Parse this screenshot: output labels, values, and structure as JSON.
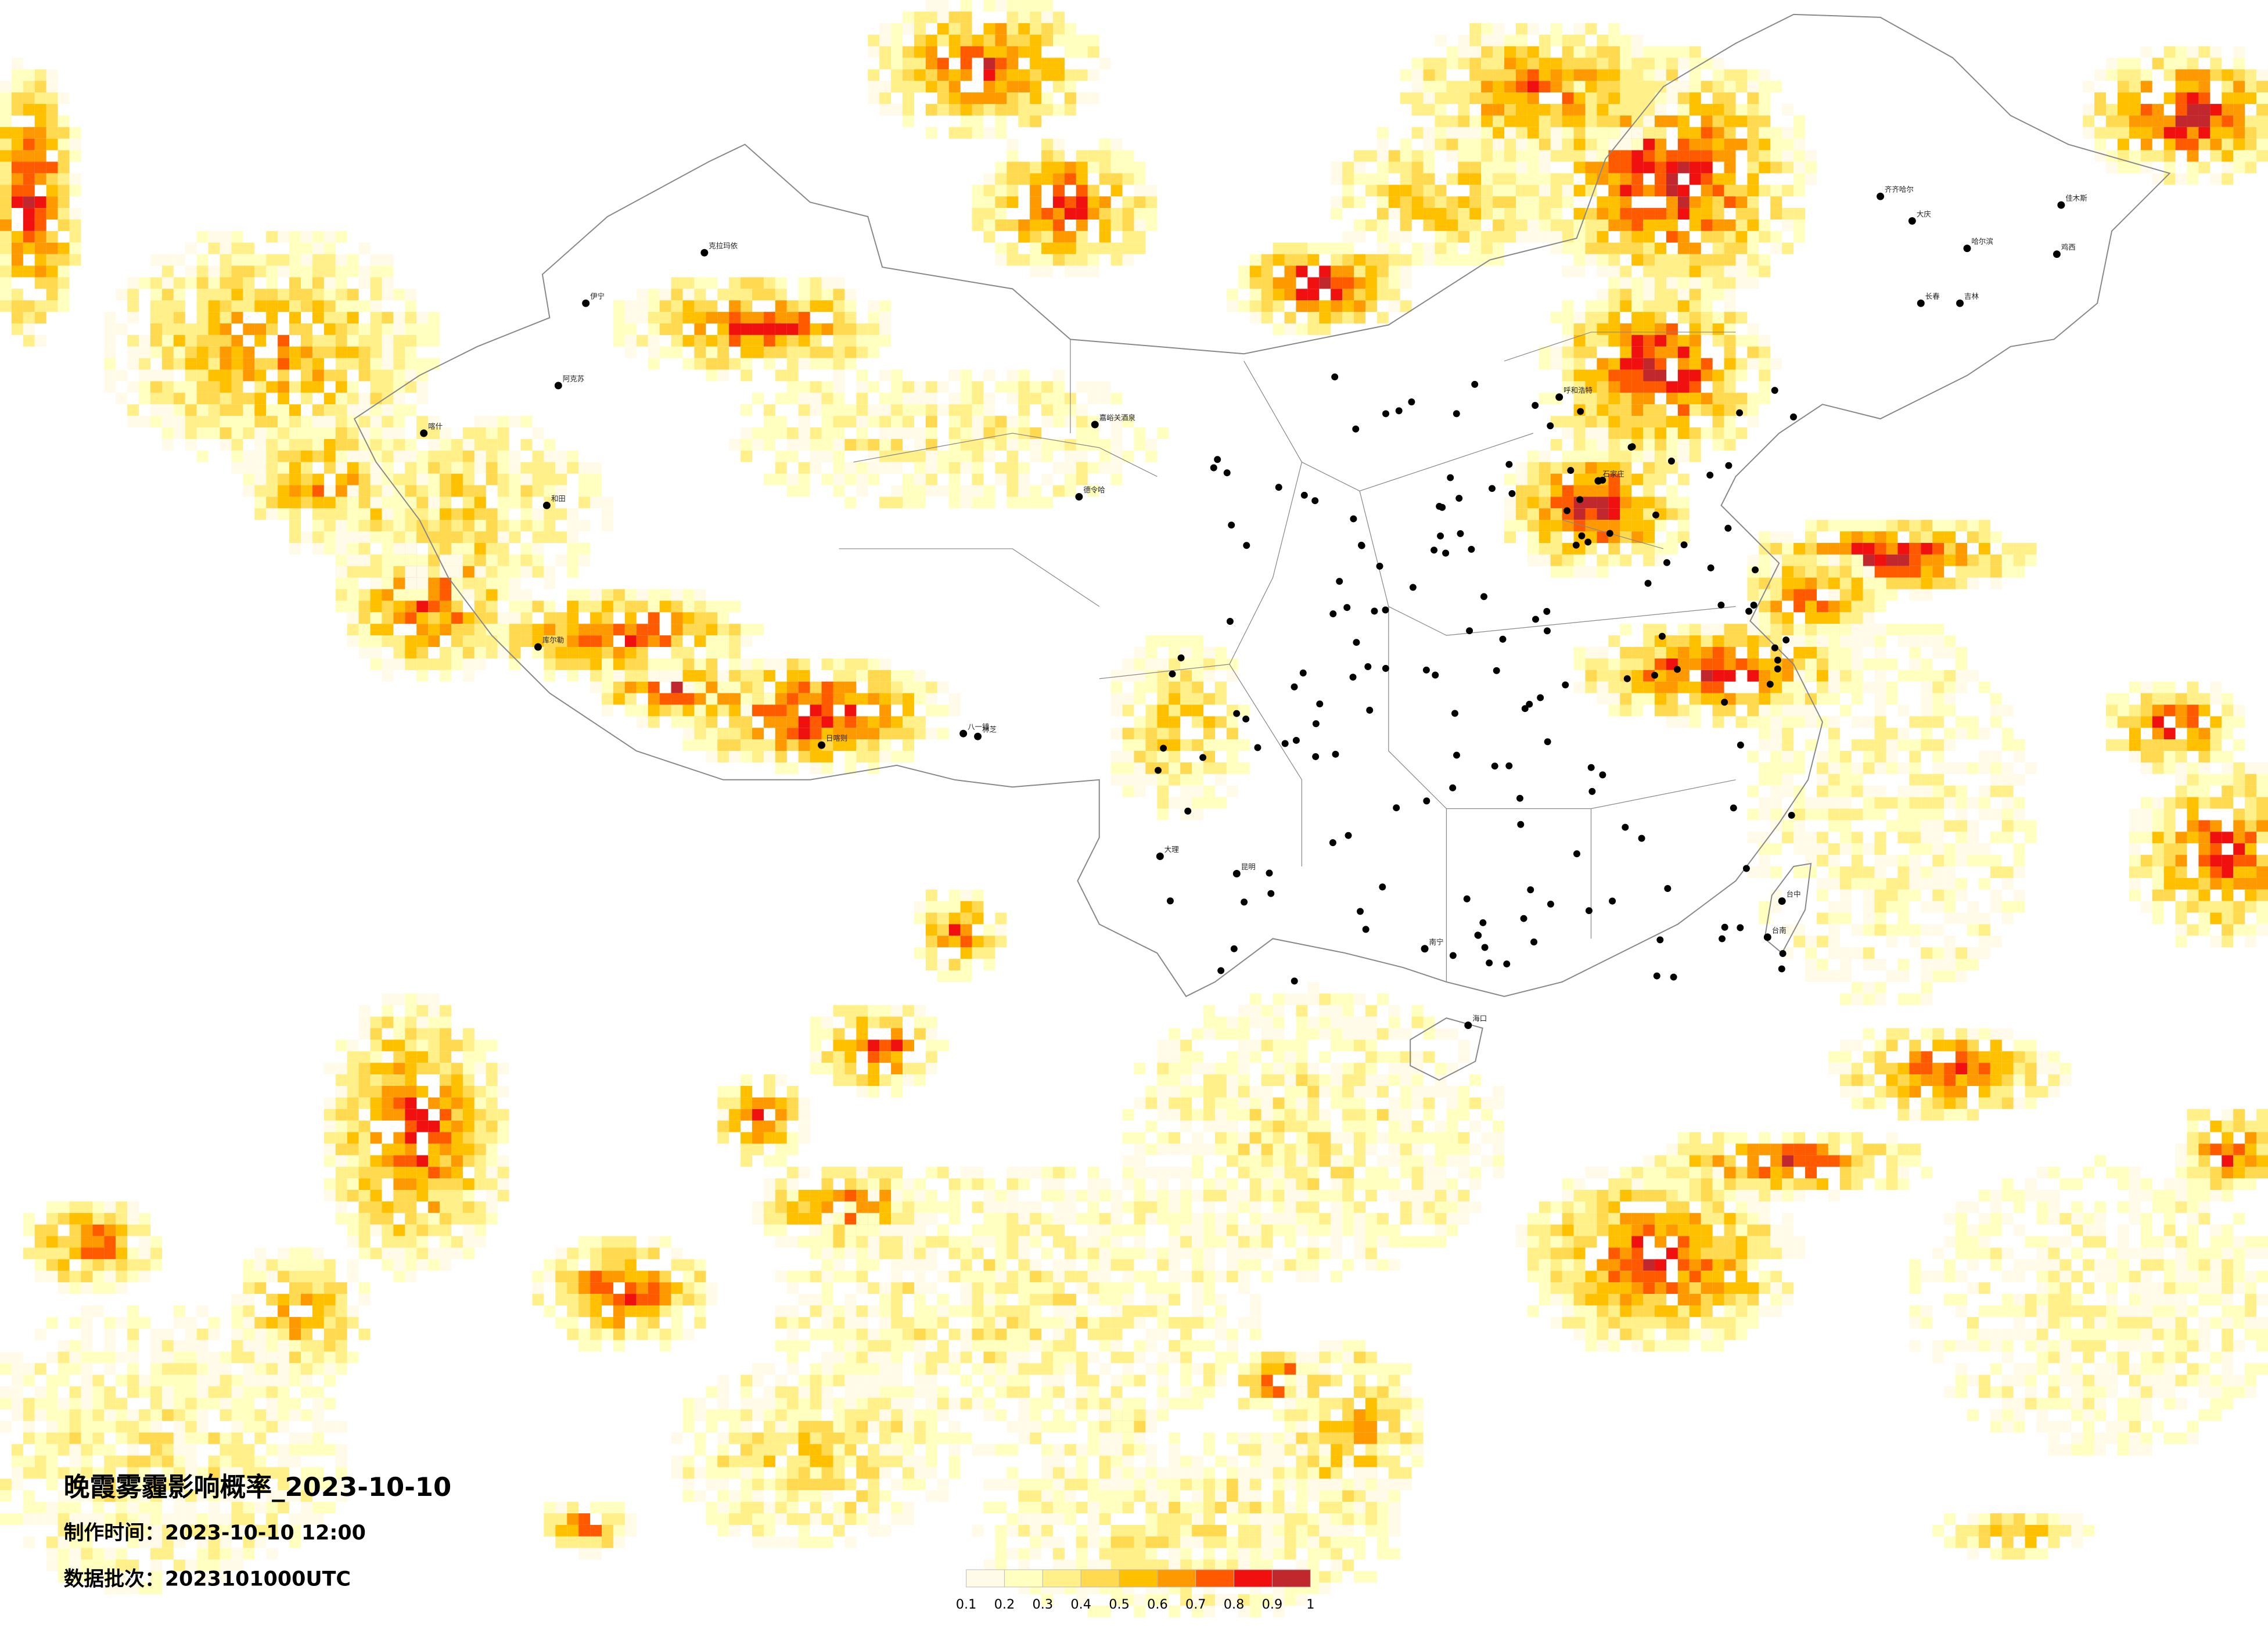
{
  "header": {
    "title": "晚霞雾霾影响概率_2023-10-10",
    "made": "制作时间：2023-10-10 12:00",
    "batch": "数据批次：2023101000UTC"
  },
  "legend": {
    "colors": [
      "#fffbe8",
      "#ffffc0",
      "#fff08a",
      "#ffd94f",
      "#ffc000",
      "#ff9900",
      "#ff5a00",
      "#f01010",
      "#c0282d"
    ],
    "ticks": [
      0.1,
      0.2,
      0.3,
      0.4,
      0.5,
      0.6,
      0.7,
      0.8,
      0.9,
      1
    ]
  },
  "cities": [
    "克拉玛依",
    "伊宁",
    "阿克苏",
    "喀什",
    "和田",
    "库尔勒",
    "嘉峪关酒泉",
    "德令哈",
    "日喀则",
    "八一镇",
    "林芝",
    "大理",
    "昆明",
    "南宁",
    "海口",
    "齐齐哈尔",
    "大庆",
    "哈尔滨",
    "长春",
    "吉林",
    "呼和浩特",
    "石家庄",
    "台中",
    "台南",
    "鸡西",
    "佳木斯"
  ]
}
